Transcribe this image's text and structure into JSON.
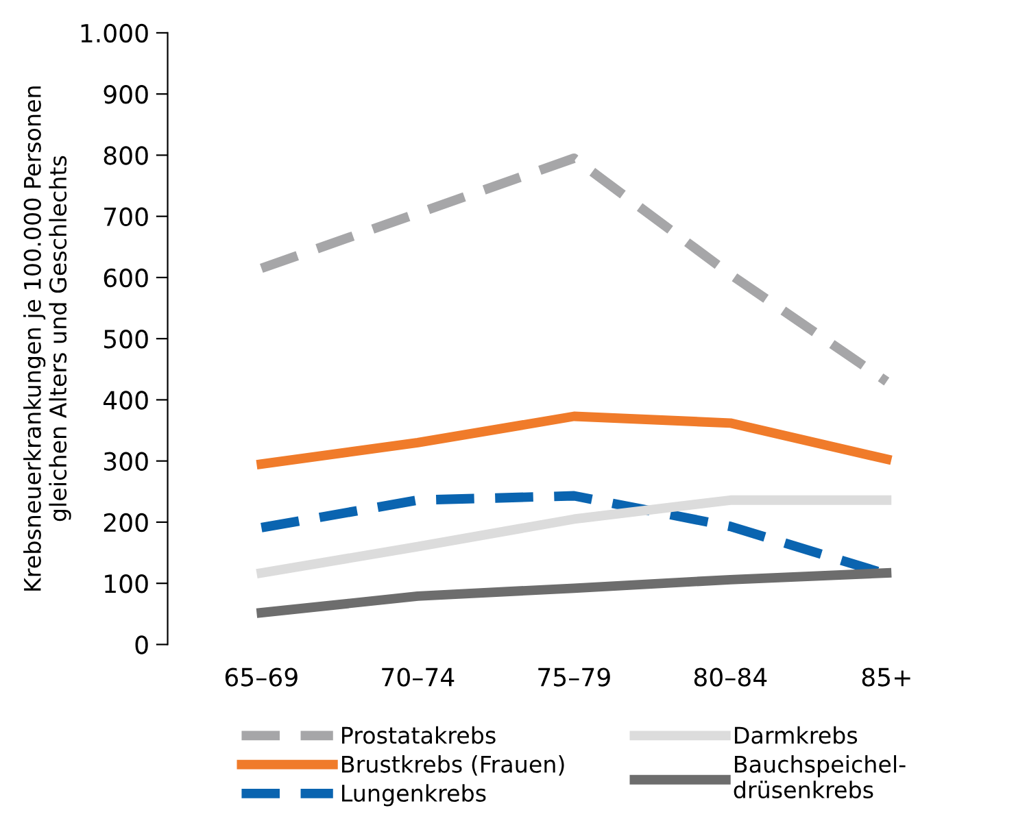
{
  "chart_data": {
    "type": "line",
    "ylabel": "Krebsneuerkrankungen je 100.000 Personen\ngleichen Alters und Geschlechts",
    "categories": [
      "65–69",
      "70–74",
      "75–79",
      "80–84",
      "85+"
    ],
    "ylim": [
      0,
      1000
    ],
    "yticks": [
      0,
      100,
      200,
      300,
      400,
      500,
      600,
      700,
      800,
      900,
      {
        "value": 1000,
        "label": "1.000"
      }
    ],
    "grid": false,
    "legend": "bottom",
    "marker": "none",
    "series": [
      {
        "name": "Prostatakrebs",
        "color": "#a6a6a8",
        "line_style": "dashed",
        "values": [
          615,
          705,
          795,
          605,
          430
        ]
      },
      {
        "name": "Brustkrebs (Frauen)",
        "color": "#f07b2a",
        "line_style": "solid",
        "values": [
          295,
          330,
          373,
          362,
          303
        ]
      },
      {
        "name": "Lungenkrebs",
        "color": "#0a64b0",
        "line_style": "dashed",
        "values": [
          191,
          236,
          243,
          193,
          115
        ]
      },
      {
        "name": "Darmkrebs",
        "color": "#dcdcdc",
        "line_style": "solid",
        "values": [
          117,
          160,
          205,
          236,
          236
        ]
      },
      {
        "name": "Bauchspeichel-\ndrüsenkrebs",
        "color": "#6d6d6d",
        "line_style": "solid",
        "values": [
          52,
          79,
          92,
          106,
          117
        ]
      }
    ]
  }
}
